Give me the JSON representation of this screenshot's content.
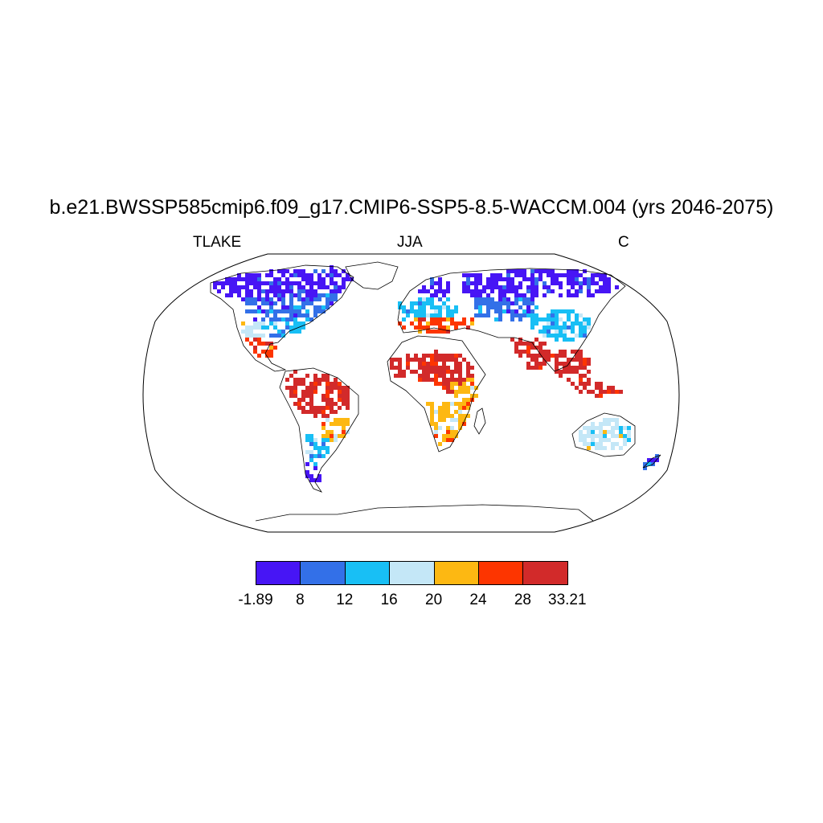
{
  "title": "b.e21.BWSSP585cmip6.f09_g17.CMIP6-SSP5-8.5-WACCM.004 (yrs 2046-2075)",
  "left_string": "TLAKE",
  "center_string": "JJA",
  "right_string": "C",
  "colorbar": {
    "colors": [
      "#4715f5",
      "#3370e8",
      "#18bff5",
      "#c4e7f7",
      "#fdb812",
      "#fd3500",
      "#d22a2a"
    ],
    "labels": [
      "-1.89",
      "8",
      "12",
      "16",
      "20",
      "24",
      "28",
      "33.21"
    ]
  },
  "map": {
    "projection": "robinson",
    "regions": [
      {
        "name": "canada-arctic",
        "bin": 0
      },
      {
        "name": "canada-south",
        "bin": 1
      },
      {
        "name": "us-northeast",
        "bin": 2
      },
      {
        "name": "us-south",
        "bin": 3
      },
      {
        "name": "mexico",
        "bin": 5
      },
      {
        "name": "amazon",
        "bin": 6
      },
      {
        "name": "south-brazil",
        "bin": 4
      },
      {
        "name": "argentina",
        "bin": 2
      },
      {
        "name": "patagonia",
        "bin": 0
      },
      {
        "name": "scandinavia",
        "bin": 0
      },
      {
        "name": "europe",
        "bin": 2
      },
      {
        "name": "mediterranean",
        "bin": 5
      },
      {
        "name": "siberia",
        "bin": 0
      },
      {
        "name": "central-asia",
        "bin": 1
      },
      {
        "name": "china",
        "bin": 2
      },
      {
        "name": "india",
        "bin": 6
      },
      {
        "name": "southeast-asia",
        "bin": 6
      },
      {
        "name": "sahel",
        "bin": 6
      },
      {
        "name": "east-africa",
        "bin": 4
      },
      {
        "name": "southern-africa",
        "bin": 4
      },
      {
        "name": "australia",
        "bin": 3
      },
      {
        "name": "new-zealand",
        "bin": 1
      }
    ]
  }
}
